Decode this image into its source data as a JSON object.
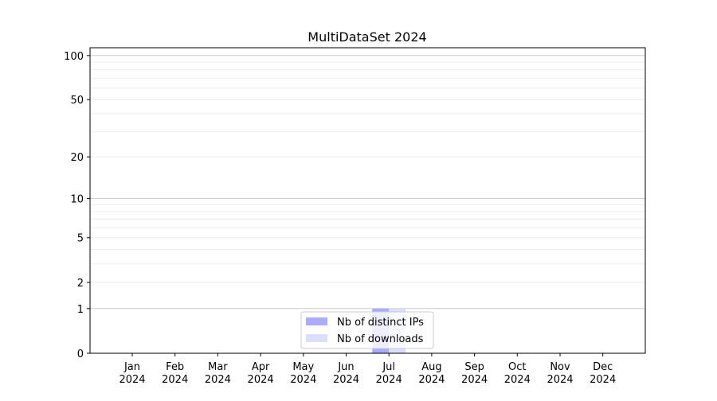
{
  "chart_data": {
    "type": "bar",
    "title": "MultiDataSet 2024",
    "xlabel": "",
    "ylabel": "",
    "y_scale": "log(1+y)",
    "ylim": [
      0,
      113
    ],
    "grid": true,
    "legend_placement": "bottom-center",
    "categories": [
      "Jan\n2024",
      "Feb\n2024",
      "Mar\n2024",
      "Apr\n2024",
      "May\n2024",
      "Jun\n2024",
      "Jul\n2024",
      "Aug\n2024",
      "Sep\n2024",
      "Oct\n2024",
      "Nov\n2024",
      "Dec\n2024"
    ],
    "y_ticks": [
      0,
      1,
      2,
      5,
      10,
      20,
      50,
      100
    ],
    "y_tick_labels": [
      "0",
      "1",
      "2",
      "5",
      "10",
      "20",
      "50",
      "100"
    ],
    "series": [
      {
        "name": "Nb of distinct IPs",
        "color": "#aaaaff",
        "values": [
          0,
          0,
          0,
          0,
          0,
          0,
          1,
          0,
          0,
          0,
          0,
          0
        ]
      },
      {
        "name": "Nb of downloads",
        "color": "#ddddff",
        "values": [
          0,
          0,
          0,
          0,
          0,
          0,
          1,
          0,
          0,
          0,
          0,
          0
        ]
      }
    ]
  }
}
